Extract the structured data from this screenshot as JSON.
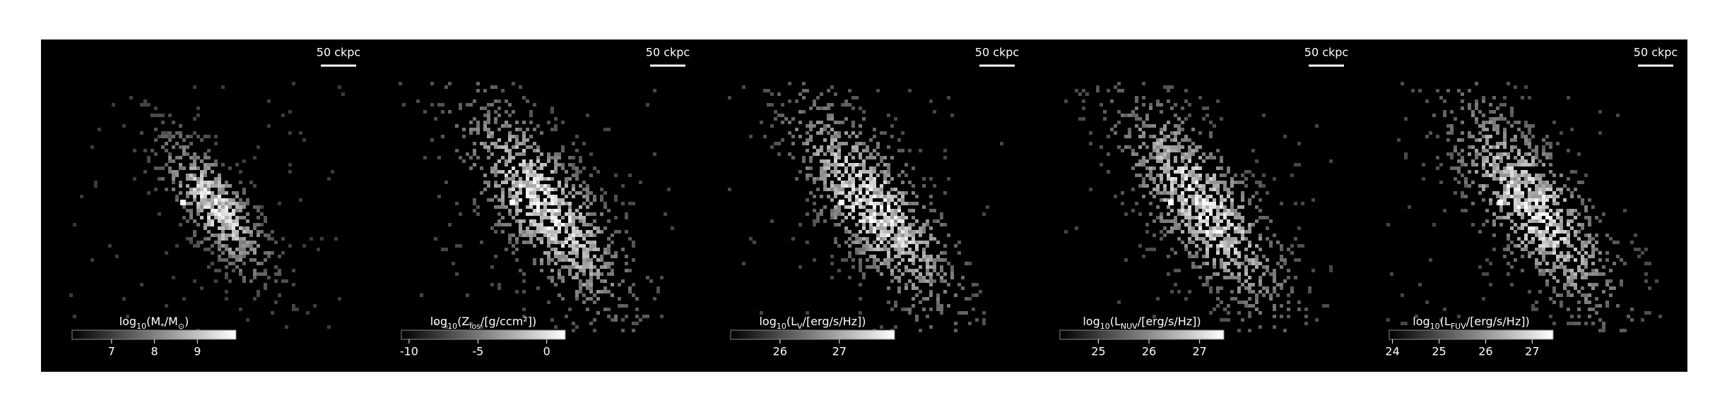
{
  "chart_data": [
    {
      "type": "image",
      "scale_bar": "50 ckpc",
      "label": [
        {
          "text": "log"
        },
        {
          "text": "10",
          "sub": true
        },
        {
          "text": "(M"
        },
        {
          "text": "*",
          "sub": true
        },
        {
          "text": "/M"
        },
        {
          "text": "⊙",
          "sub": true
        },
        {
          "text": ")"
        }
      ],
      "xlim": [
        6.08,
        9.9
      ],
      "xticks": [
        7,
        8,
        9
      ]
    },
    {
      "type": "image",
      "scale_bar": "50 ckpc",
      "label": [
        {
          "text": "log"
        },
        {
          "text": "10",
          "sub": true
        },
        {
          "text": "(Z"
        },
        {
          "text": "los",
          "sub": true
        },
        {
          "text": "/[g/ccm²])"
        }
      ],
      "xlim": [
        -10.56,
        1.35
      ],
      "xticks": [
        -10,
        -5,
        0
      ]
    },
    {
      "type": "image",
      "scale_bar": "50 ckpc",
      "label": [
        {
          "text": "log"
        },
        {
          "text": "10",
          "sub": true
        },
        {
          "text": "(L"
        },
        {
          "text": "V",
          "sub": true
        },
        {
          "text": "/[erg/s/Hz])"
        }
      ],
      "xlim": [
        25.17,
        27.93
      ],
      "xticks": [
        26,
        27
      ]
    },
    {
      "type": "image",
      "scale_bar": "50 ckpc",
      "label": [
        {
          "text": "log"
        },
        {
          "text": "10",
          "sub": true
        },
        {
          "text": "(L"
        },
        {
          "text": "NUV",
          "sub": true
        },
        {
          "text": "/[erg/s/Hz])"
        }
      ],
      "xlim": [
        24.24,
        27.48
      ],
      "xticks": [
        25,
        26,
        27
      ]
    },
    {
      "type": "image",
      "scale_bar": "50 ckpc",
      "label": [
        {
          "text": "log"
        },
        {
          "text": "10",
          "sub": true
        },
        {
          "text": "(L"
        },
        {
          "text": "FUV",
          "sub": true
        },
        {
          "text": "/[erg/s/Hz])"
        }
      ],
      "xlim": [
        23.93,
        27.45
      ],
      "xticks": [
        24,
        25,
        26,
        27
      ]
    }
  ]
}
